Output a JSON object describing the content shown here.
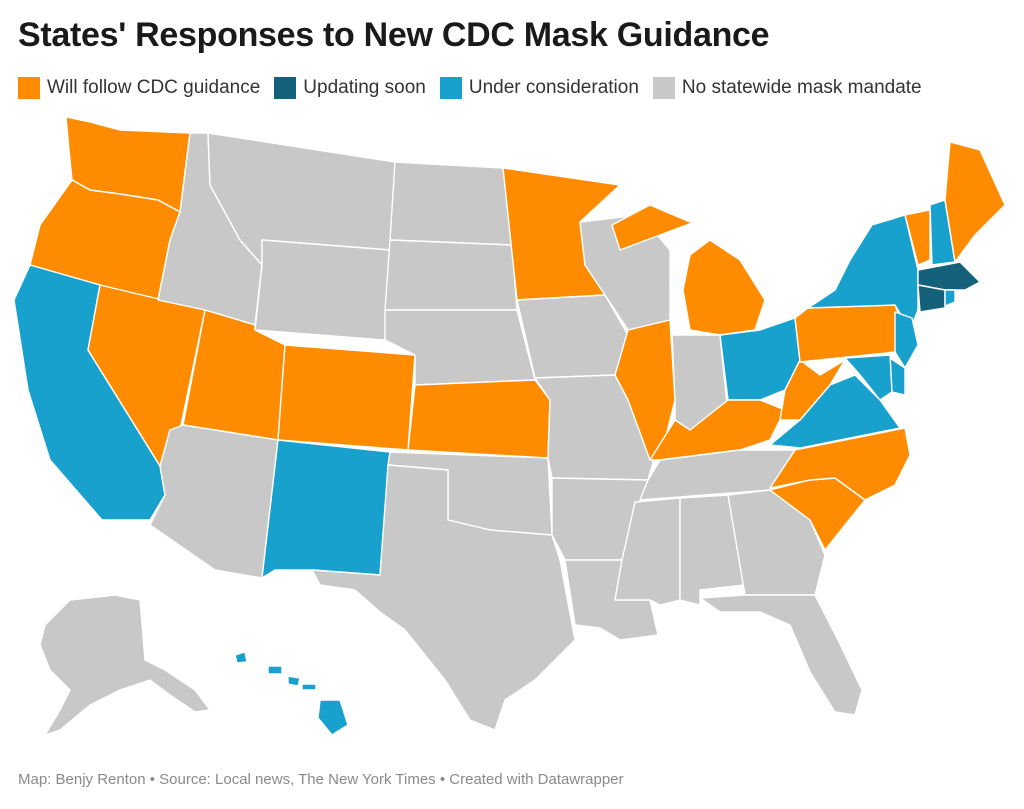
{
  "title": "States' Responses to New CDC Mask Guidance",
  "legend": [
    {
      "label": "Will follow CDC guidance",
      "color": "#ff8c00",
      "category": "follow"
    },
    {
      "label": "Updating soon",
      "color": "#15607a",
      "category": "updating"
    },
    {
      "label": "Under consideration",
      "color": "#18a1cd",
      "category": "consideration"
    },
    {
      "label": "No statewide mask mandate",
      "color": "#c8c8c8",
      "category": "none"
    }
  ],
  "states": {
    "Washington": "follow",
    "Oregon": "follow",
    "California": "consideration",
    "Nevada": "follow",
    "Idaho": "none",
    "Montana": "none",
    "Wyoming": "none",
    "Utah": "follow",
    "Arizona": "none",
    "Colorado": "follow",
    "New Mexico": "consideration",
    "North Dakota": "none",
    "South Dakota": "none",
    "Nebraska": "none",
    "Kansas": "follow",
    "Oklahoma": "none",
    "Texas": "none",
    "Minnesota": "follow",
    "Iowa": "none",
    "Missouri": "none",
    "Arkansas": "none",
    "Louisiana": "none",
    "Wisconsin": "none",
    "Illinois": "follow",
    "Michigan": "follow",
    "Indiana": "none",
    "Ohio": "consideration",
    "Kentucky": "follow",
    "Tennessee": "none",
    "Mississippi": "none",
    "Alabama": "none",
    "Georgia": "none",
    "Florida": "none",
    "South Carolina": "follow",
    "North Carolina": "follow",
    "Virginia": "consideration",
    "West Virginia": "follow",
    "Pennsylvania": "follow",
    "New York": "consideration",
    "Vermont": "follow",
    "New Hampshire": "consideration",
    "Maine": "follow",
    "Massachusetts": "updating",
    "Rhode Island": "consideration",
    "Connecticut": "updating",
    "New Jersey": "consideration",
    "Delaware": "consideration",
    "Maryland": "consideration",
    "Alaska": "none",
    "Hawaii": "consideration"
  },
  "footer": "Map: Benjy Renton • Source: Local news, The New York Times • Created with Datawrapper"
}
